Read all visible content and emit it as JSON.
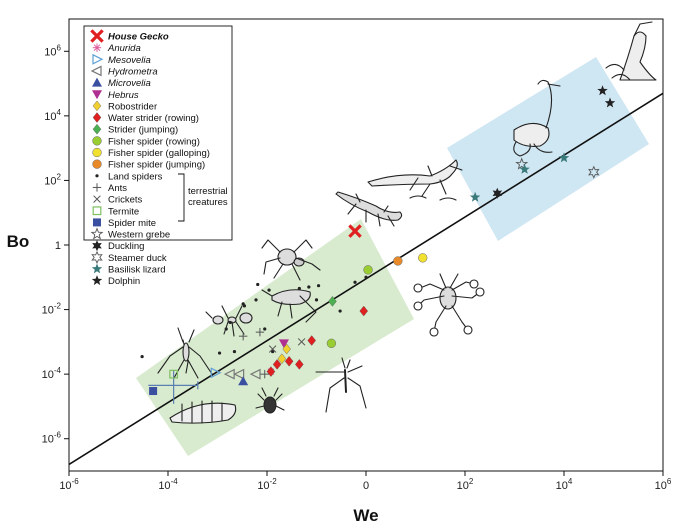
{
  "chart_data": {
    "type": "scatter",
    "title": "",
    "xlabel": "We",
    "ylabel": "Bo",
    "x_scale": "log",
    "y_scale": "log",
    "xlim": [
      1e-06,
      1000000.0
    ],
    "ylim": [
      1e-07,
      10000000.0
    ],
    "x_tick_labels": [
      "10",
      "10",
      "10",
      "10",
      "0",
      "10",
      "10",
      "10"
    ],
    "x_tick_exps": [
      "-6",
      "-4",
      "-2",
      "",
      "",
      "2",
      "4",
      "6"
    ],
    "y_tick_labels": [
      "10",
      "10",
      "10",
      "1",
      "10",
      "10",
      "10"
    ],
    "y_tick_exps": [
      "-6",
      "-4",
      "-2",
      "",
      "2",
      "4",
      "6"
    ],
    "reference_line": {
      "slope": 1,
      "points": [
        [
          1e-06,
          1.6e-07
        ],
        [
          1000000.0,
          50000.0
        ]
      ]
    },
    "regions": [
      {
        "name": "terrestrial creatures",
        "color": "#d8ebcf"
      },
      {
        "name": "",
        "color": "#cfe6f3"
      }
    ],
    "terrestrial_label": "terrestrial\ncreatures",
    "series": [
      {
        "name": "House Gecko",
        "marker": "x-thick",
        "color": "#e02020",
        "style": "bold-italic",
        "points": [
          [
            0.6,
            2.7
          ]
        ]
      },
      {
        "name": "Anurida",
        "marker": "asterisk",
        "color": "#e060a0",
        "style": "italic",
        "points": [
          [
            0.012,
            0.00012
          ]
        ]
      },
      {
        "name": "Mesovelia",
        "marker": "tri-right",
        "color": "#5fa0d6",
        "style": "italic",
        "points": [
          [
            0.0009,
            0.00011
          ]
        ]
      },
      {
        "name": "Hydrometra",
        "marker": "tri-left",
        "color": "#777777",
        "style": "italic",
        "points": [
          [
            0.0018,
            0.0001
          ],
          [
            0.006,
            0.0001
          ],
          [
            0.0028,
            0.0001
          ]
        ]
      },
      {
        "name": "Microvelia",
        "marker": "tri-up",
        "color": "#3a4fa0",
        "style": "italic",
        "points": [
          [
            0.0033,
            6e-05
          ]
        ]
      },
      {
        "name": "Hebrus",
        "marker": "tri-down",
        "color": "#b03090",
        "style": "italic",
        "points": [
          [
            0.022,
            0.0009
          ]
        ]
      },
      {
        "name": "Robostrider",
        "marker": "diamond",
        "color": "#f0d030",
        "style": "normal",
        "points": [
          [
            0.025,
            0.0006
          ],
          [
            0.02,
            0.0003
          ]
        ]
      },
      {
        "name": "Water strider (rowing)",
        "marker": "diamond",
        "color": "#e02020",
        "style": "normal",
        "points": [
          [
            0.016,
            0.0002
          ],
          [
            0.028,
            0.00025
          ],
          [
            0.045,
            0.0002
          ],
          [
            0.08,
            0.0011
          ],
          [
            0.9,
            0.009
          ],
          [
            0.012,
            0.00012
          ]
        ]
      },
      {
        "name": "Strider (jumping)",
        "marker": "diamond",
        "color": "#4caf50",
        "style": "normal",
        "points": [
          [
            0.21,
            0.018
          ]
        ]
      },
      {
        "name": "Fisher spider (rowing)",
        "marker": "circle",
        "color": "#9acd32",
        "style": "normal",
        "points": [
          [
            0.2,
            0.0009
          ],
          [
            1.1,
            0.17
          ]
        ]
      },
      {
        "name": "Fisher spider (galloping)",
        "marker": "circle",
        "color": "#f0e030",
        "style": "normal",
        "points": [
          [
            14,
            0.4
          ]
        ]
      },
      {
        "name": "Fisher spider (jumping)",
        "marker": "circle",
        "color": "#e88a2a",
        "style": "normal",
        "points": [
          [
            4.4,
            0.32
          ]
        ]
      },
      {
        "name": "Land spiders",
        "marker": "dot",
        "color": "#222222",
        "style": "normal",
        "points": [
          [
            3e-05,
            0.00035
          ],
          [
            0.0018,
            0.004
          ],
          [
            0.0065,
            0.06
          ],
          [
            0.011,
            0.04
          ],
          [
            0.0035,
            0.013
          ],
          [
            0.006,
            0.02
          ],
          [
            0.045,
            0.045
          ],
          [
            0.07,
            0.05
          ],
          [
            0.11,
            0.055
          ],
          [
            0.3,
            0.009
          ],
          [
            0.6,
            0.07
          ],
          [
            0.0011,
            0.00045
          ],
          [
            0.0022,
            0.0005
          ],
          [
            0.009,
            0.0025
          ],
          [
            0.013,
            0.0005
          ],
          [
            0.0015,
            0.0025
          ],
          [
            0.0033,
            0.015
          ],
          [
            0.1,
            0.02
          ],
          [
            1,
            0.1
          ]
        ]
      },
      {
        "name": "Ants",
        "marker": "plus",
        "color": "#555555",
        "style": "normal",
        "points": [
          [
            0.0033,
            0.0015
          ],
          [
            0.0072,
            0.002
          ],
          [
            0.009,
            0.0001
          ]
        ]
      },
      {
        "name": "Crickets",
        "marker": "xcross",
        "color": "#555555",
        "style": "normal",
        "points": [
          [
            0.05,
            0.001
          ],
          [
            0.013,
            0.0006
          ]
        ]
      },
      {
        "name": "Termite",
        "marker": "square-open",
        "color": "#7fbf5f",
        "style": "normal",
        "points": [
          [
            0.00013,
            0.0001
          ]
        ]
      },
      {
        "name": "Spider mite",
        "marker": "square",
        "color": "#3a4fa0",
        "style": "normal",
        "points": [
          [
            5e-05,
            3e-05
          ]
        ]
      },
      {
        "name": "Western grebe",
        "marker": "star-open",
        "color": "#555555",
        "style": "normal",
        "points": [
          [
            1400,
            320
          ]
        ]
      },
      {
        "name": "Duckling",
        "marker": "star6",
        "color": "#222222",
        "style": "normal",
        "points": [
          [
            450,
            40
          ]
        ]
      },
      {
        "name": "Steamer duck",
        "marker": "star6-open",
        "color": "#555555",
        "style": "normal",
        "points": [
          [
            40000,
            180
          ]
        ]
      },
      {
        "name": "Basilisk lizard",
        "marker": "star",
        "color": "#3a7a7a",
        "style": "normal",
        "points": [
          [
            160,
            30
          ],
          [
            1600,
            220
          ],
          [
            10000,
            500
          ]
        ]
      },
      {
        "name": "Dolphin",
        "marker": "star",
        "color": "#222222",
        "style": "normal",
        "points": [
          [
            60000,
            60000
          ],
          [
            85000,
            25000
          ]
        ]
      }
    ],
    "error_bar": {
      "x": 0.00013,
      "y": 4.5e-05,
      "xerr": [
        4e-05,
        0.0004
      ],
      "yerr": [
        1.2e-05,
        0.00013
      ]
    },
    "legend_position": "top-left"
  }
}
